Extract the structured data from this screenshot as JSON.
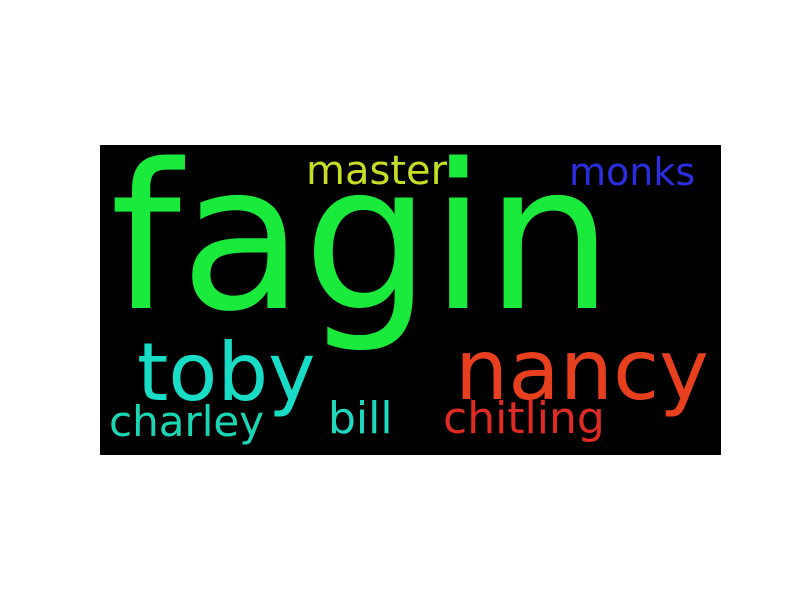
{
  "background_color": "#000000",
  "words": {
    "fagin": {
      "text": "fagin",
      "color": "#19ea3c"
    },
    "master": {
      "text": "master",
      "color": "#c7dc24"
    },
    "monks": {
      "text": "monks",
      "color": "#2b2ee0"
    },
    "toby": {
      "text": "toby",
      "color": "#19dcc6"
    },
    "nancy": {
      "text": "nancy",
      "color": "#e8401f"
    },
    "charley": {
      "text": "charley",
      "color": "#19d7b4"
    },
    "bill": {
      "text": "bill",
      "color": "#1cd9c0"
    },
    "chitling": {
      "text": "chitling",
      "color": "#e02a24"
    }
  }
}
